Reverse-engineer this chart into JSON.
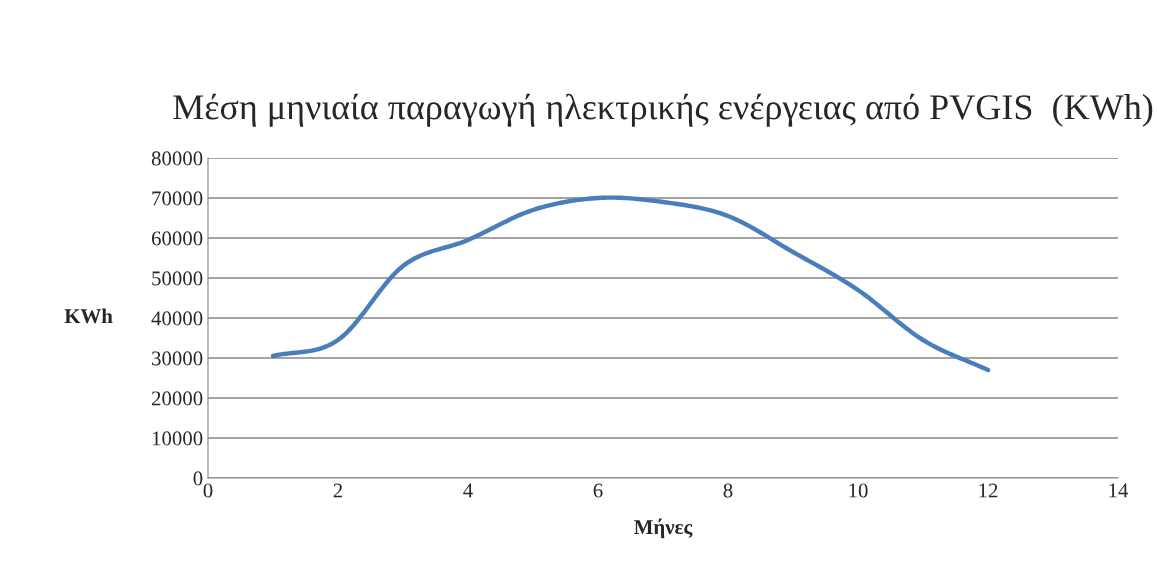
{
  "chart_data": {
    "type": "line",
    "title": "Μέση μηνιαία παραγωγή ηλεκτρικής ενέργειας από PVGIS  (KWh)",
    "xlabel": "Μήνες",
    "ylabel": "KWh",
    "x": [
      1,
      2,
      3,
      4,
      5,
      6,
      7,
      8,
      9,
      10,
      11,
      12
    ],
    "series": [
      {
        "color": "#4a7ebb",
        "values": [
          30500,
          34500,
          53000,
          59500,
          67000,
          70000,
          69000,
          65500,
          56500,
          47000,
          34500,
          27000
        ]
      }
    ],
    "xlim": [
      0,
      14
    ],
    "xticks": [
      0,
      2,
      4,
      6,
      8,
      10,
      12,
      14
    ],
    "ylim": [
      0,
      80000
    ],
    "yticks": [
      0,
      10000,
      20000,
      30000,
      40000,
      50000,
      60000,
      70000,
      80000
    ],
    "grid": "y",
    "legend": false,
    "marker": "none",
    "line_style": "solid"
  }
}
